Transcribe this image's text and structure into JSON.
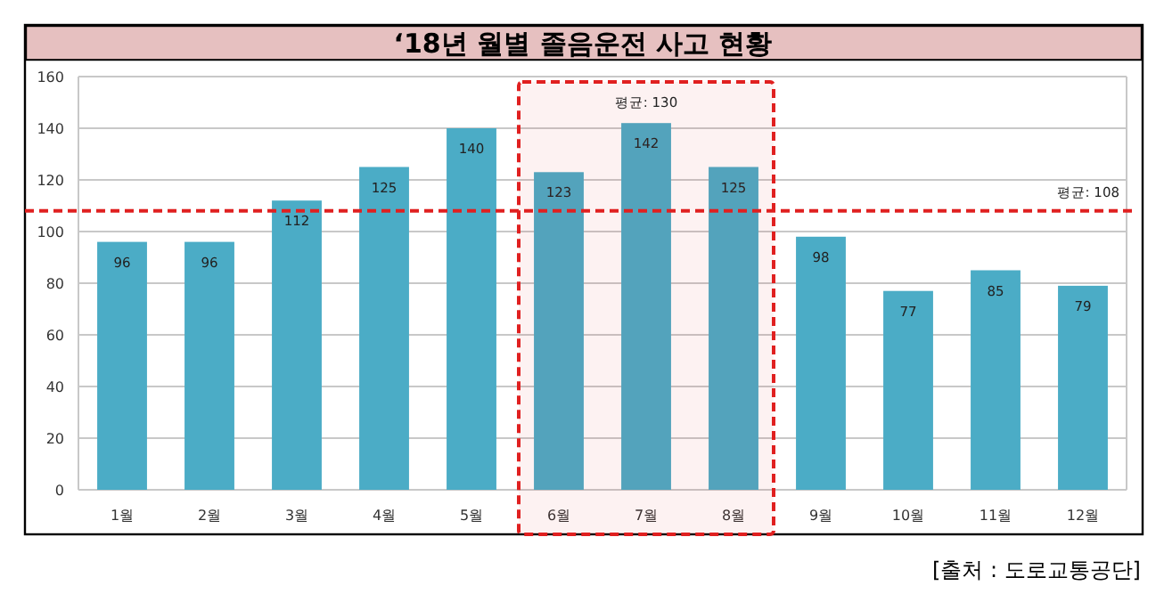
{
  "chart_data": {
    "type": "bar",
    "title": "‘18년 월별 졸음운전 사고 현황",
    "categories": [
      "1월",
      "2월",
      "3월",
      "4월",
      "5월",
      "6월",
      "7월",
      "8월",
      "9월",
      "10월",
      "11월",
      "12월"
    ],
    "values": [
      96,
      96,
      112,
      125,
      140,
      123,
      142,
      125,
      98,
      77,
      85,
      79
    ],
    "color": "#4bacc6",
    "data_labels": true,
    "ylim": [
      0,
      160
    ],
    "yticks": [
      0,
      20,
      40,
      60,
      80,
      100,
      120,
      140,
      160
    ],
    "grid": "y",
    "ref_lines": [
      {
        "axis": "y",
        "value": 108,
        "label": "평균: 108",
        "color": "#e02020",
        "line_style": "dashed"
      }
    ],
    "bands": [
      {
        "axis": "x",
        "from": "6월",
        "to": "8월",
        "label": "평균: 130",
        "color": "#e02020"
      }
    ],
    "annotations": [
      "[출처 : 도로교통공단]"
    ]
  }
}
